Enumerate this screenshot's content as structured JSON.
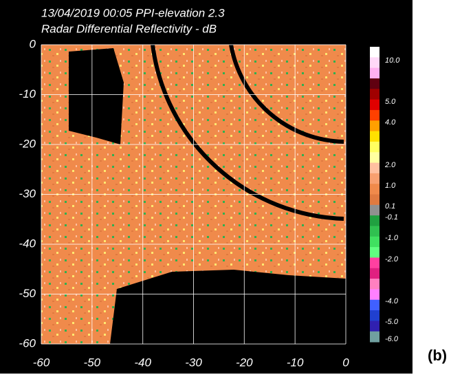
{
  "chart_data": {
    "type": "radar-ppi",
    "title": "13/04/2019 00:05 PPI-elevation 2.3",
    "subtitle": "Radar Differential Reflectivity - dB",
    "xlim": [
      -60,
      0
    ],
    "xticks": [
      -60,
      -50,
      -40,
      -30,
      -20,
      -10,
      0
    ],
    "ylim": [
      -60,
      0
    ],
    "yticks": [
      0,
      -10,
      -20,
      -30,
      -40,
      -50,
      -60
    ],
    "grid": true,
    "colorbar": {
      "colors": [
        "#ffffff",
        "#ffd8f8",
        "#ffb0f0",
        "#600010",
        "#a00000",
        "#e00000",
        "#ff4000",
        "#ffa000",
        "#ffe000",
        "#ffff60",
        "#ffffa0",
        "#ffc0a0",
        "#f8a070",
        "#f08a4b",
        "#e07a40",
        "#909090",
        "#20a040",
        "#30c050",
        "#40e060",
        "#60ff80",
        "#ff40a0",
        "#e02080",
        "#ff80c0",
        "#ff80ff",
        "#4060ff",
        "#2040d0",
        "#3020b0",
        "#70a0a0"
      ],
      "ticks": [
        {
          "value": 10,
          "label": "10.0"
        },
        {
          "value": 5,
          "label": "5.0"
        },
        {
          "value": 4,
          "label": "4.0"
        },
        {
          "value": 2,
          "label": "2.0"
        },
        {
          "value": 1,
          "label": "1.0"
        },
        {
          "value": 0.1,
          "label": "0.1"
        },
        {
          "value": -0.1,
          "label": "-0.1"
        },
        {
          "value": -1,
          "label": "-1.0"
        },
        {
          "value": -2,
          "label": "-2.0"
        },
        {
          "value": -4,
          "label": "-4.0"
        },
        {
          "value": -5,
          "label": "-5.0"
        },
        {
          "value": -6,
          "label": "-6.0"
        }
      ]
    },
    "panel_label": "(b)"
  }
}
